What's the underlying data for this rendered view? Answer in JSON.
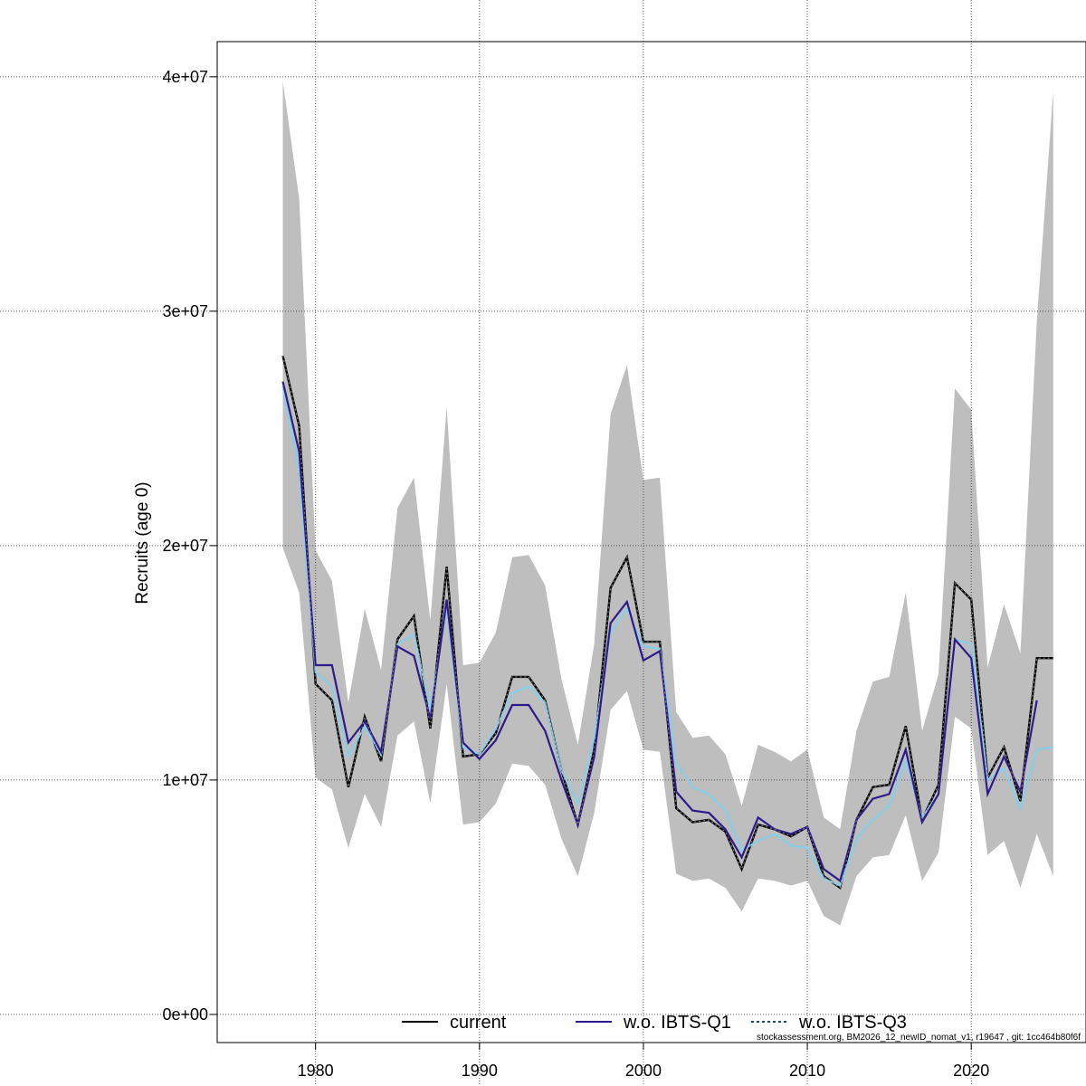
{
  "chart_data": {
    "type": "line",
    "xlabel": "",
    "ylabel": "Recruits (age 0)",
    "xlim": [
      1974,
      2027
    ],
    "ylim": [
      -1200000,
      41500000
    ],
    "x_ticks": [
      1980,
      1990,
      2000,
      2010,
      2020
    ],
    "x_tick_labels": [
      "1980",
      "1990",
      "2000",
      "2010",
      "2020"
    ],
    "y_ticks": [
      0,
      10000000,
      20000000,
      30000000,
      40000000
    ],
    "y_tick_labels": [
      "0e+00",
      "1e+07",
      "2e+07",
      "3e+07",
      "4e+07"
    ],
    "grid": true,
    "legend_position": "bottom",
    "colors": {
      "band": "#bebebe",
      "current": "#000000",
      "wo_q1": "#2e1a8a",
      "wo_q3_dark": "#1f4a5a",
      "wo_q3_light": "#87ceeb"
    },
    "x": [
      1978,
      1979,
      1980,
      1981,
      1982,
      1983,
      1984,
      1985,
      1986,
      1987,
      1988,
      1989,
      1990,
      1991,
      1992,
      1993,
      1994,
      1995,
      1996,
      1997,
      1998,
      1999,
      2000,
      2001,
      2002,
      2003,
      2004,
      2005,
      2006,
      2007,
      2008,
      2009,
      2010,
      2011,
      2012,
      2013,
      2014,
      2015,
      2016,
      2017,
      2018,
      2019,
      2020,
      2021,
      2022,
      2023,
      2024,
      2025
    ],
    "series": [
      {
        "name": "current",
        "values": [
          28100000,
          25100000,
          14100000,
          13400000,
          9700000,
          12700000,
          10800000,
          16000000,
          17000000,
          12200000,
          19100000,
          11000000,
          11100000,
          12000000,
          14400000,
          14400000,
          13400000,
          10400000,
          8100000,
          11300000,
          18200000,
          19500000,
          15900000,
          15900000,
          8800000,
          8200000,
          8300000,
          7800000,
          6200000,
          8100000,
          7900000,
          7600000,
          8000000,
          5900000,
          5400000,
          8300000,
          9700000,
          9800000,
          12300000,
          8300000,
          9800000,
          18400000,
          17700000,
          10100000,
          11400000,
          9100000,
          15200000,
          15200000
        ]
      },
      {
        "name": "w.o. IBTS-Q1",
        "values": [
          27000000,
          24000000,
          14900000,
          14900000,
          11600000,
          12500000,
          11200000,
          15700000,
          15300000,
          12600000,
          17700000,
          11600000,
          10900000,
          11700000,
          13200000,
          13200000,
          12100000,
          10000000,
          8100000,
          11000000,
          16700000,
          17600000,
          15100000,
          15500000,
          9500000,
          8700000,
          8600000,
          7900000,
          6700000,
          8400000,
          7900000,
          7700000,
          8000000,
          6200000,
          5700000,
          8300000,
          9200000,
          9400000,
          11300000,
          8200000,
          9400000,
          16000000,
          15200000,
          9400000,
          11000000,
          9500000,
          13400000,
          null
        ]
      },
      {
        "name": "w.o. IBTS-Q3",
        "values": [
          26800000,
          23200000,
          14600000,
          14000000,
          11000000,
          12300000,
          11100000,
          15800000,
          16200000,
          13000000,
          17400000,
          11400000,
          11100000,
          12200000,
          13700000,
          14000000,
          13300000,
          10400000,
          9000000,
          11800000,
          16300000,
          17300000,
          15700000,
          15600000,
          10700000,
          9700000,
          9400000,
          8700000,
          7000000,
          7400000,
          7700000,
          7200000,
          7100000,
          5800000,
          5500000,
          7500000,
          8300000,
          8900000,
          10800000,
          8400000,
          9400000,
          16000000,
          15800000,
          10000000,
          10500000,
          8800000,
          11300000,
          11400000
        ]
      }
    ],
    "band_upper": [
      39800000,
      34800000,
      19800000,
      18500000,
      13300000,
      17300000,
      14700000,
      21600000,
      22900000,
      16800000,
      25900000,
      14900000,
      15000000,
      16300000,
      19500000,
      19600000,
      18300000,
      14300000,
      11500000,
      15800000,
      25600000,
      27700000,
      22800000,
      22900000,
      12900000,
      11800000,
      11900000,
      11100000,
      8900000,
      11500000,
      11200000,
      10800000,
      11300000,
      8400000,
      7900000,
      12100000,
      14200000,
      14400000,
      18000000,
      12100000,
      14500000,
      26700000,
      25800000,
      14800000,
      17500000,
      15400000,
      29600000,
      39400000
    ],
    "band_lower": [
      19900000,
      18000000,
      10100000,
      9600000,
      7100000,
      9400000,
      8000000,
      11900000,
      12500000,
      9000000,
      14100000,
      8100000,
      8200000,
      9000000,
      10700000,
      10600000,
      9800000,
      7500000,
      5900000,
      8600000,
      13000000,
      13800000,
      11300000,
      11200000,
      6000000,
      5700000,
      5800000,
      5400000,
      4400000,
      5800000,
      5700000,
      5500000,
      5700000,
      4200000,
      3800000,
      5900000,
      6700000,
      6800000,
      8500000,
      5700000,
      6900000,
      12700000,
      12200000,
      6800000,
      7400000,
      5400000,
      7700000,
      5900000
    ],
    "legend": [
      "current",
      "w.o. IBTS-Q1",
      "w.o. IBTS-Q3"
    ],
    "footnote": "stockassessment.org, BM2026_12_newID_nomat_v1, r19647 , git: 1cc464b80f6f"
  }
}
